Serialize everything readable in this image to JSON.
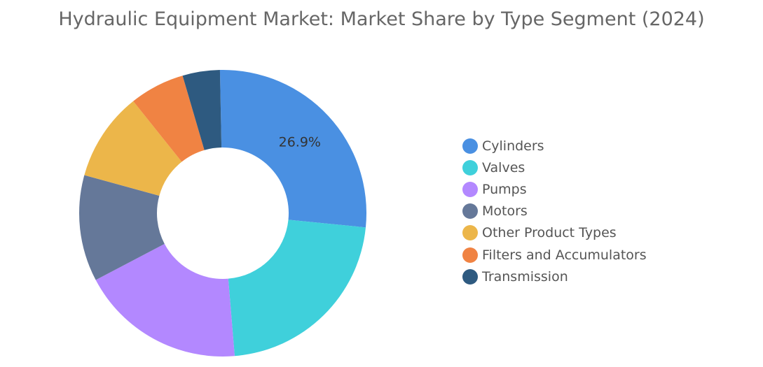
{
  "chart_data": {
    "type": "pie",
    "title": "Hydraulic Equipment Market: Market Share by Type Segment (2024)",
    "categories": [
      "Cylinders",
      "Valves",
      "Pumps",
      "Motors",
      "Other Product Types",
      "Filters and Accumulators",
      "Transmission"
    ],
    "values": [
      26.9,
      22.1,
      18.6,
      12.0,
      10.0,
      6.2,
      4.2
    ],
    "data_labels": [
      "26.9%",
      "",
      "",
      "",
      "",
      "",
      ""
    ],
    "colors": [
      "#4a90e2",
      "#3fd0db",
      "#b388ff",
      "#657899",
      "#ecb64a",
      "#f08343",
      "#2e5a80"
    ],
    "hole": true,
    "legend_position": "right"
  }
}
